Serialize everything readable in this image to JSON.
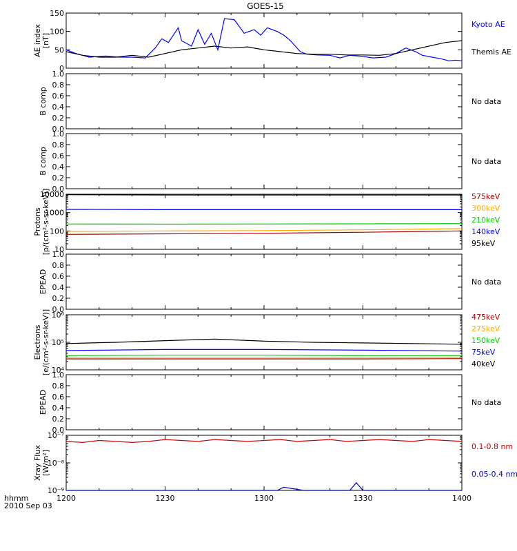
{
  "chart_data": {
    "title": "GOES-15",
    "type": "line",
    "x_axis": {
      "tick_labels": [
        "1200",
        "1230",
        "1300",
        "1330",
        "1400"
      ],
      "x_start_label": "hhmm",
      "date_label": "2010 Sep 03",
      "range_minutes": [
        0,
        120
      ]
    },
    "panels": [
      {
        "id": "ae",
        "ylabel": [
          "AE index",
          "[nT]"
        ],
        "scale": "linear",
        "ylim": [
          0,
          150
        ],
        "ticks": [
          0,
          50,
          100,
          150
        ],
        "tick_labels": [
          "0",
          "50",
          "100",
          "150"
        ],
        "legend": [
          {
            "label": "Kyoto AE",
            "color": "#0000ff"
          },
          {
            "label": "Themis AE",
            "color": "#000000"
          }
        ],
        "series": [
          {
            "name": "Kyoto AE",
            "color": "#0000ff",
            "x": [
              0,
              3,
              7,
              12,
              16,
              20,
              24,
              27,
              29,
              31,
              34,
              35,
              38,
              40,
              42,
              44,
              46,
              48,
              51,
              54,
              57,
              59,
              61,
              64,
              66,
              68,
              71,
              73,
              76,
              80,
              83,
              86,
              90,
              93,
              97,
              100,
              103,
              106,
              108,
              111,
              114,
              116,
              118,
              120
            ],
            "y": [
              50,
              40,
              30,
              33,
              30,
              30,
              28,
              55,
              80,
              70,
              110,
              75,
              60,
              105,
              65,
              95,
              50,
              135,
              132,
              95,
              105,
              90,
              110,
              100,
              90,
              75,
              45,
              38,
              36,
              35,
              28,
              35,
              32,
              28,
              30,
              40,
              55,
              45,
              35,
              30,
              25,
              20,
              22,
              20
            ]
          },
          {
            "name": "Themis AE",
            "color": "#000000",
            "x": [
              0,
              5,
              10,
              15,
              20,
              25,
              30,
              35,
              40,
              45,
              50,
              55,
              60,
              65,
              70,
              75,
              80,
              85,
              90,
              95,
              100,
              105,
              110,
              115,
              120
            ],
            "y": [
              45,
              35,
              30,
              30,
              35,
              30,
              40,
              50,
              55,
              60,
              55,
              58,
              50,
              45,
              40,
              38,
              38,
              36,
              36,
              35,
              40,
              50,
              60,
              70,
              75
            ]
          }
        ]
      },
      {
        "id": "b1",
        "ylabel": [
          "B comp"
        ],
        "scale": "linear",
        "ylim": [
          0,
          1
        ],
        "ticks": [
          0,
          0.2,
          0.4,
          0.6,
          0.8,
          1.0
        ],
        "tick_labels": [
          "0.0",
          "0.2",
          "0.4",
          "0.6",
          "0.8",
          "1.0"
        ],
        "status": "No data"
      },
      {
        "id": "b2",
        "ylabel": [
          "B comp"
        ],
        "scale": "linear",
        "ylim": [
          0,
          1
        ],
        "ticks": [
          0,
          0.2,
          0.4,
          0.6,
          0.8,
          1.0
        ],
        "tick_labels": [
          "0.0",
          "0.2",
          "0.4",
          "0.6",
          "0.8",
          "1.0"
        ],
        "status": "No data"
      },
      {
        "id": "protons",
        "ylabel": [
          "Protons",
          "[p/(cm²-s-sr-keV)]"
        ],
        "scale": "log",
        "ylim": [
          10,
          10000
        ],
        "ticks": [
          10,
          100,
          1000,
          10000
        ],
        "tick_labels": [
          "10",
          "100",
          "1000",
          "10000"
        ],
        "legend": [
          {
            "label": "575keV",
            "color": "#aa0000"
          },
          {
            "label": "300keV",
            "color": "#ffaa00"
          },
          {
            "label": "210keV",
            "color": "#00cc00"
          },
          {
            "label": "140keV",
            "color": "#0000ff"
          },
          {
            "label": "95keV",
            "color": "#000000"
          }
        ],
        "series": [
          {
            "name": "575keV",
            "color": "#aa0000",
            "x": [
              0,
              30,
              60,
              90,
              120
            ],
            "y": [
              65,
              70,
              75,
              85,
              100
            ]
          },
          {
            "name": "300keV",
            "color": "#ffaa00",
            "x": [
              0,
              30,
              60,
              90,
              120
            ],
            "y": [
              95,
              100,
              105,
              115,
              135
            ]
          },
          {
            "name": "210keV",
            "color": "#00cc00",
            "x": [
              0,
              30,
              60,
              90,
              120
            ],
            "y": [
              240,
              235,
              240,
              245,
              250
            ]
          },
          {
            "name": "140keV",
            "color": "#0000ff",
            "x": [
              0,
              30,
              60,
              90,
              120
            ],
            "y": [
              1500,
              1450,
              1450,
              1450,
              1450
            ]
          },
          {
            "name": "95keV",
            "color": "#000000",
            "x": [
              0,
              30,
              60,
              90,
              120
            ],
            "y": [
              9500,
              9000,
              9000,
              9000,
              9000
            ]
          }
        ]
      },
      {
        "id": "epead1",
        "ylabel": [
          "EPEAD"
        ],
        "scale": "linear",
        "ylim": [
          0,
          1
        ],
        "ticks": [
          0,
          0.2,
          0.4,
          0.6,
          0.8,
          1.0
        ],
        "tick_labels": [
          "0.0",
          "0.2",
          "0.4",
          "0.6",
          "0.8",
          "1.0"
        ],
        "status": "No data"
      },
      {
        "id": "electrons",
        "ylabel": [
          "Electrons",
          "[e/(cm²-s-sr-keV)]"
        ],
        "scale": "log",
        "ylim": [
          10000,
          1000000
        ],
        "ticks": [
          10000,
          100000,
          1000000
        ],
        "tick_labels": [
          "10⁴",
          "10⁵",
          "10⁶"
        ],
        "legend": [
          {
            "label": "475keV",
            "color": "#aa0000"
          },
          {
            "label": "275keV",
            "color": "#ffaa00"
          },
          {
            "label": "150keV",
            "color": "#00cc00"
          },
          {
            "label": "75keV",
            "color": "#0000ff"
          },
          {
            "label": "40keV",
            "color": "#000000"
          }
        ],
        "series": [
          {
            "name": "475keV",
            "color": "#aa0000",
            "x": [
              0,
              30,
              60,
              90,
              120
            ],
            "y": [
              25000,
              25000,
              25000,
              25000,
              25500
            ]
          },
          {
            "name": "275keV",
            "color": "#ffaa00",
            "x": [
              0,
              30,
              60,
              90,
              120
            ],
            "y": [
              27000,
              27000,
              27000,
              27000,
              27500
            ]
          },
          {
            "name": "150keV",
            "color": "#00cc00",
            "x": [
              0,
              30,
              60,
              90,
              120
            ],
            "y": [
              33000,
              34000,
              34000,
              33000,
              33000
            ]
          },
          {
            "name": "75keV",
            "color": "#0000ff",
            "x": [
              0,
              30,
              60,
              90,
              120
            ],
            "y": [
              50000,
              55000,
              55000,
              52000,
              48000
            ]
          },
          {
            "name": "40keV",
            "color": "#000000",
            "x": [
              0,
              15,
              30,
              45,
              60,
              75,
              90,
              105,
              120
            ],
            "y": [
              90000,
              100000,
              115000,
              130000,
              110000,
              100000,
              95000,
              90000,
              85000
            ]
          }
        ]
      },
      {
        "id": "epead2",
        "ylabel": [
          "EPEAD"
        ],
        "scale": "linear",
        "ylim": [
          0,
          1
        ],
        "ticks": [
          0,
          0.2,
          0.4,
          0.6,
          0.8,
          1.0
        ],
        "tick_labels": [
          "0.0",
          "0.2",
          "0.4",
          "0.6",
          "0.8",
          "1.0"
        ],
        "status": "No data"
      },
      {
        "id": "xray",
        "ylabel": [
          "Xray Flux",
          "[W/m²]"
        ],
        "scale": "log",
        "ylim": [
          1e-09,
          1e-07
        ],
        "ticks": [
          1e-09,
          1e-08,
          1e-07
        ],
        "tick_labels": [
          "10⁻⁹",
          "10⁻⁸",
          "10⁻⁷"
        ],
        "legend": [
          {
            "label": "0.1-0.8 nm",
            "color": "#cc0000"
          },
          {
            "label": "0.05-0.4 nm",
            "color": "#0000cc"
          }
        ],
        "series": [
          {
            "name": "0.1-0.8 nm",
            "color": "#cc0000",
            "x": [
              0,
              5,
              10,
              15,
              20,
              25,
              30,
              35,
              40,
              45,
              50,
              55,
              60,
              65,
              70,
              75,
              80,
              85,
              90,
              95,
              100,
              105,
              110,
              115,
              120
            ],
            "y": [
              6e-08,
              5.5e-08,
              6.5e-08,
              6e-08,
              5.5e-08,
              6e-08,
              7e-08,
              6.5e-08,
              6e-08,
              7e-08,
              6.5e-08,
              6e-08,
              6.5e-08,
              7e-08,
              6e-08,
              6.5e-08,
              7e-08,
              6e-08,
              6.5e-08,
              7e-08,
              6.5e-08,
              6e-08,
              7e-08,
              6.5e-08,
              6e-08
            ]
          },
          {
            "name": "0.05-0.4 nm",
            "color": "#0000cc",
            "x": [
              0,
              12,
              20,
              40,
              60,
              64,
              66,
              72,
              78,
              86,
              88,
              90,
              120
            ],
            "y": [
              1e-09,
              1e-09,
              1e-09,
              1e-09,
              1e-09,
              1e-09,
              1.3e-09,
              1e-09,
              1e-09,
              1e-09,
              1.9e-09,
              1e-09,
              1e-09
            ]
          }
        ]
      }
    ]
  }
}
